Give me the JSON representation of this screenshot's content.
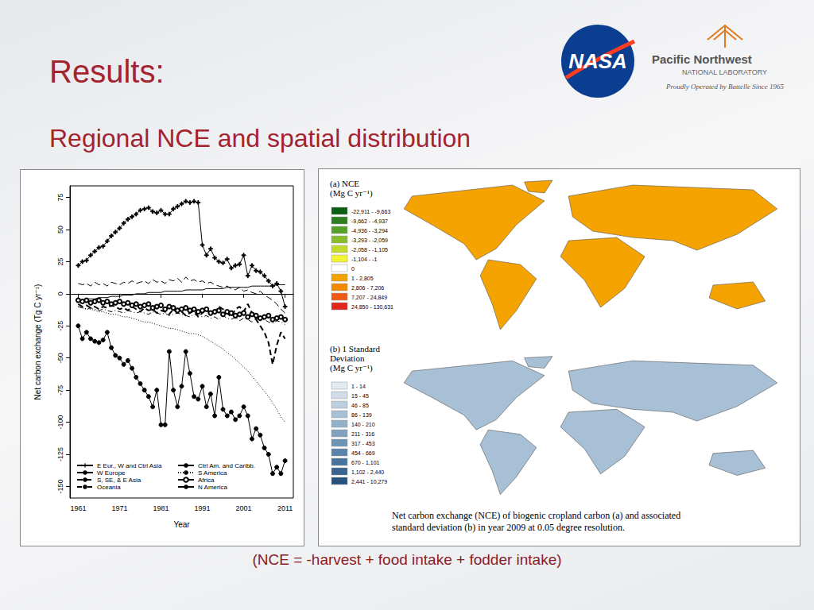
{
  "slide": {
    "title": "Results:",
    "subtitle": "Regional NCE and spatial distribution",
    "footer": "(NCE = -harvest + food intake + fodder intake)",
    "logos": {
      "nasa": "NASA",
      "pnnl": [
        "Pacific Northwest",
        "NATIONAL LABORATORY",
        "Proudly Operated by Battelle Since 1965"
      ]
    }
  },
  "chart_data": {
    "type": "line",
    "x_label": "Year",
    "y_label": "Net carbon exchange (Tg C yr⁻¹)",
    "x": [
      1961,
      1962,
      1963,
      1964,
      1965,
      1966,
      1967,
      1968,
      1969,
      1970,
      1971,
      1972,
      1973,
      1974,
      1975,
      1976,
      1977,
      1978,
      1979,
      1980,
      1981,
      1982,
      1983,
      1984,
      1985,
      1986,
      1987,
      1988,
      1989,
      1990,
      1991,
      1992,
      1993,
      1994,
      1995,
      1996,
      1997,
      1998,
      1999,
      2000,
      2001,
      2002,
      2003,
      2004,
      2005,
      2006,
      2007,
      2008,
      2009,
      2010,
      2011
    ],
    "xlim": [
      1959,
      2013
    ],
    "xticks": [
      1961,
      1971,
      1981,
      1991,
      2001,
      2011
    ],
    "ylim": [
      -159,
      84
    ],
    "yticks": [
      -150,
      -125,
      -100,
      -75,
      -50,
      -25,
      0,
      25,
      50,
      75
    ],
    "grid": false,
    "legend": "lower left",
    "series": [
      {
        "name": "E Eur., W and Ctrl Asia",
        "color": "#000000",
        "marker": "plus",
        "line_style": "solid",
        "values": [
          22,
          25,
          26,
          30,
          33,
          36,
          37,
          41,
          45,
          48,
          51,
          55,
          58,
          60,
          62,
          65,
          66,
          67,
          64,
          63,
          65,
          62,
          62,
          66,
          68,
          70,
          72,
          71,
          72,
          71,
          38,
          30,
          35,
          28,
          25,
          24,
          27,
          20,
          22,
          23,
          30,
          14,
          22,
          18,
          17,
          14,
          10,
          6,
          8,
          2,
          -10
        ]
      },
      {
        "name": "W Europe",
        "color": "#000000",
        "marker": "none",
        "line_style": "longdash",
        "values": [
          8,
          7,
          8,
          6,
          9,
          7,
          8,
          6,
          9,
          8,
          7,
          9,
          8,
          10,
          8,
          9,
          10,
          8,
          11,
          9,
          10,
          8,
          11,
          10,
          12,
          9,
          13,
          10,
          11,
          9,
          10,
          8,
          9,
          7,
          6,
          5,
          6,
          4,
          3,
          5,
          2,
          3,
          1,
          0,
          2,
          -1,
          -3,
          -5,
          -8,
          -12,
          -15
        ]
      },
      {
        "name": "S, SE, & E Asia",
        "color": "#000000",
        "marker": "none",
        "line_style": "bolddashed",
        "values": [
          -8,
          -10,
          -9,
          -11,
          -10,
          -12,
          -10,
          -11,
          -9,
          -10,
          -12,
          -11,
          -13,
          -10,
          -12,
          -14,
          -11,
          -13,
          -12,
          -15,
          -13,
          -14,
          -16,
          -12,
          -15,
          -14,
          -17,
          -15,
          -13,
          -18,
          -15,
          -12,
          -16,
          -14,
          -10,
          -12,
          -15,
          -18,
          -12,
          -10,
          -14,
          -8,
          -15,
          -20,
          -25,
          -30,
          -38,
          -55,
          -40,
          -30,
          -35
        ]
      },
      {
        "name": "Oceania",
        "color": "#000000",
        "marker": "none",
        "line_style": "dashdot",
        "values": [
          -10,
          -11,
          -12,
          -11,
          -12,
          -13,
          -12,
          -13,
          -14,
          -13,
          -14,
          -15,
          -13,
          -14,
          -15,
          -14,
          -15,
          -16,
          -14,
          -15,
          -16,
          -15,
          -17,
          -16,
          -15,
          -16,
          -17,
          -18,
          -16,
          -17,
          -18,
          -17,
          -19,
          -18,
          -20,
          -17,
          -19,
          -20,
          -18,
          -21,
          -19,
          -20,
          -22,
          -19,
          -21,
          -20,
          -22,
          -23,
          -21,
          -22,
          -24
        ]
      },
      {
        "name": "Ctrl Am. and Caribb.",
        "color": "#000000",
        "marker": "none",
        "line_style": "solid",
        "values": [
          -5,
          -5,
          -4,
          -4,
          -4,
          -3,
          -3,
          -3,
          -2,
          -2,
          -2,
          -1,
          -1,
          -1,
          0,
          0,
          0,
          1,
          1,
          1,
          1,
          2,
          2,
          2,
          2,
          2,
          3,
          3,
          3,
          3,
          3,
          4,
          4,
          4,
          4,
          4,
          5,
          5,
          5,
          5,
          5,
          5,
          6,
          6,
          6,
          6,
          6,
          6,
          7,
          7,
          7
        ]
      },
      {
        "name": "S America",
        "color": "#000000",
        "marker": "none",
        "line_style": "dotted",
        "values": [
          -10,
          -11,
          -12,
          -12,
          -13,
          -14,
          -14,
          -15,
          -16,
          -16,
          -17,
          -18,
          -18,
          -19,
          -20,
          -21,
          -22,
          -22,
          -23,
          -24,
          -25,
          -26,
          -27,
          -27,
          -28,
          -29,
          -30,
          -31,
          -31,
          -32,
          -33,
          -35,
          -37,
          -39,
          -41,
          -43,
          -46,
          -48,
          -51,
          -54,
          -57,
          -60,
          -64,
          -68,
          -72,
          -76,
          -80,
          -85,
          -90,
          -96,
          -100
        ]
      },
      {
        "name": "Africa",
        "color": "#000000",
        "marker": "open_circle",
        "line_style": "solid",
        "values": [
          -5,
          -6,
          -5,
          -7,
          -6,
          -5,
          -7,
          -6,
          -8,
          -7,
          -6,
          -8,
          -7,
          -9,
          -8,
          -10,
          -9,
          -8,
          -11,
          -10,
          -9,
          -12,
          -10,
          -11,
          -13,
          -12,
          -11,
          -13,
          -12,
          -14,
          -13,
          -12,
          -15,
          -14,
          -13,
          -16,
          -14,
          -15,
          -17,
          -16,
          -15,
          -18,
          -16,
          -17,
          -19,
          -18,
          -17,
          -20,
          -19,
          -18,
          -20
        ]
      },
      {
        "name": "N America",
        "color": "#000000",
        "marker": "filled_circle",
        "line_style": "solid",
        "values": [
          -25,
          -35,
          -30,
          -35,
          -37,
          -38,
          -36,
          -30,
          -42,
          -48,
          -50,
          -55,
          -52,
          -58,
          -65,
          -70,
          -75,
          -80,
          -88,
          -75,
          -102,
          -102,
          -45,
          -75,
          -88,
          -72,
          -45,
          -62,
          -80,
          -82,
          -72,
          -88,
          -78,
          -95,
          -65,
          -90,
          -95,
          -92,
          -98,
          -95,
          -88,
          -95,
          -113,
          -105,
          -110,
          -120,
          -125,
          -140,
          -135,
          -140,
          -130
        ]
      }
    ]
  },
  "maps": {
    "panels": [
      {
        "title": [
          "(a) NCE",
          "(Mg C yr⁻¹)"
        ],
        "classes": [
          {
            "label": "-22,911 - -9,663",
            "color": "#0b5e14"
          },
          {
            "label": "-9,662 - -4,937",
            "color": "#2e7d1e"
          },
          {
            "label": "-4,936 - -3,294",
            "color": "#56a02a"
          },
          {
            "label": "-3,293 - -2,059",
            "color": "#86bd2c"
          },
          {
            "label": "-2,058 - -1,105",
            "color": "#c3da2d"
          },
          {
            "label": "-1,104 - -1",
            "color": "#f3f533"
          },
          {
            "label": "0",
            "color": "#ffffff"
          },
          {
            "label": "1 - 2,805",
            "color": "#f5a300"
          },
          {
            "label": "2,806 - 7,206",
            "color": "#f28a00"
          },
          {
            "label": "7,207 - 24,849",
            "color": "#ee5a14"
          },
          {
            "label": "24,850 - 130,631",
            "color": "#e3261b"
          }
        ]
      },
      {
        "title": [
          "(b) 1 Standard",
          "Deviation",
          "(Mg C yr⁻¹)"
        ],
        "classes": [
          {
            "label": "1 - 14",
            "color": "#e3ebf1"
          },
          {
            "label": "15 - 45",
            "color": "#d0dde8"
          },
          {
            "label": "46 - 85",
            "color": "#bccfdf"
          },
          {
            "label": "86 - 139",
            "color": "#a8c0d5"
          },
          {
            "label": "140 - 210",
            "color": "#94b1cb"
          },
          {
            "label": "211 - 316",
            "color": "#80a2c0"
          },
          {
            "label": "317 - 453",
            "color": "#6d93b5"
          },
          {
            "label": "454 - 669",
            "color": "#5a83a9"
          },
          {
            "label": "670 - 1,101",
            "color": "#48739c"
          },
          {
            "label": "1,102 - 2,440",
            "color": "#37638e"
          },
          {
            "label": "2,441 - 10,279",
            "color": "#28527e"
          }
        ]
      }
    ],
    "caption": [
      "Net carbon exchange (NCE) of biogenic cropland carbon (a) and associated",
      "standard deviation (b) in year 2009 at 0.05 degree resolution."
    ]
  }
}
